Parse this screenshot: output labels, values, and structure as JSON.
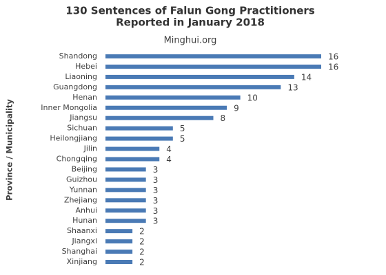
{
  "chart_data": {
    "type": "bar",
    "orientation": "horizontal",
    "title": [
      "130 Sentences of Falun Gong Practitioners",
      "Reported in January 2018"
    ],
    "subtitle": "Minghui.org",
    "y_label": "Province / Municipality",
    "categories": [
      "Shandong",
      "Hebei",
      "Liaoning",
      "Guangdong",
      "Henan",
      "Inner Mongolia",
      "Jiangsu",
      "Sichuan",
      "Heilongjiang",
      "Jilin",
      "Chongqing",
      "Beijing",
      "Guizhou",
      "Yunnan",
      "Zhejiang",
      "Anhui",
      "Hunan",
      "Shaanxi",
      "Jiangxi",
      "Shanghai",
      "Xinjiang"
    ],
    "values": [
      16,
      16,
      14,
      13,
      10,
      9,
      8,
      5,
      5,
      4,
      4,
      3,
      3,
      3,
      3,
      3,
      3,
      2,
      2,
      2,
      2
    ],
    "color": "#4a7ab5",
    "xlim": [
      0,
      16
    ]
  }
}
